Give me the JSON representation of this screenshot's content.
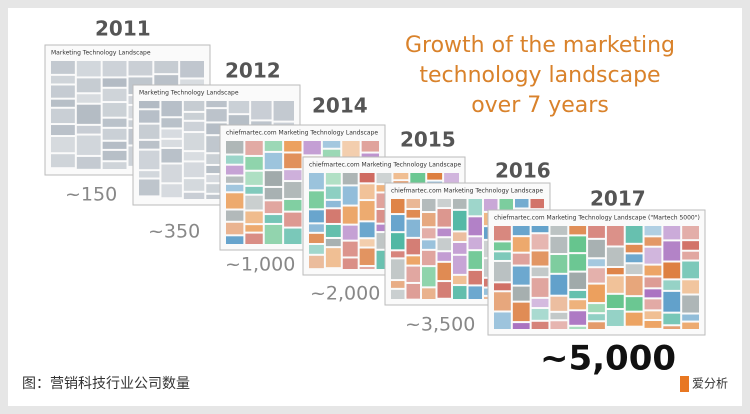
{
  "title": [
    "Growth of the marketing",
    "technology landscape",
    "over 7 years"
  ],
  "panels": [
    {
      "year": "2011",
      "count": "~150",
      "header": "Marketing Technology Landscape"
    },
    {
      "year": "2012",
      "count": "~350",
      "header": "Marketing Technology Landscape"
    },
    {
      "year": "2014",
      "count": "~1,000",
      "header": "chiefmartec.com Marketing Technology Landscape"
    },
    {
      "year": "2015",
      "count": "~2,000",
      "header": "chiefmartec.com Marketing Technology Landscape"
    },
    {
      "year": "2016",
      "count": "~3,500",
      "header": "chiefmartec.com Marketing Technology Landscape"
    },
    {
      "year": "2017",
      "count": "~5,000",
      "header": "chiefmartec.com Marketing Technology Landscape (\"Martech 5000\")"
    }
  ],
  "caption": "图：营销科技行业公司数量",
  "logo": "爱分析"
}
